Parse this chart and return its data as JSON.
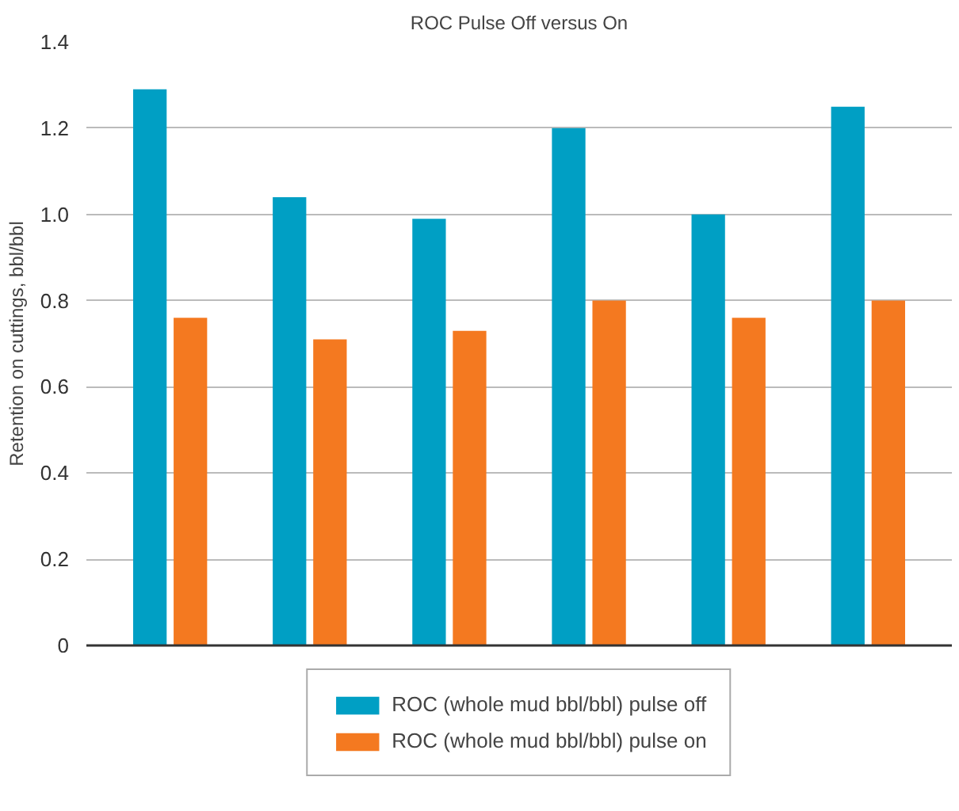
{
  "chart_data": {
    "type": "bar",
    "title": "ROC Pulse Off versus On",
    "ylabel": "Retention on cuttings, bbl/bbl",
    "categories": [
      null,
      null,
      null,
      null,
      null,
      null
    ],
    "series": [
      {
        "name": "ROC (whole mud bbl/bbl) pulse off",
        "color": "#009fc4",
        "values": [
          1.29,
          1.04,
          0.99,
          1.2,
          1.0,
          1.25
        ]
      },
      {
        "name": "ROC (whole mud bbl/bbl) pulse on",
        "color": "#f47920",
        "values": [
          0.76,
          0.71,
          0.73,
          0.8,
          0.76,
          0.8
        ]
      }
    ],
    "ylim": [
      0,
      1.4
    ],
    "yticks": [
      {
        "value": 0,
        "label": "0"
      },
      0.2,
      0.4,
      0.6,
      0.8,
      {
        "value": 1.0,
        "label": "1.0"
      },
      1.2,
      1.4
    ],
    "grid": "y",
    "legend": "bottom"
  }
}
